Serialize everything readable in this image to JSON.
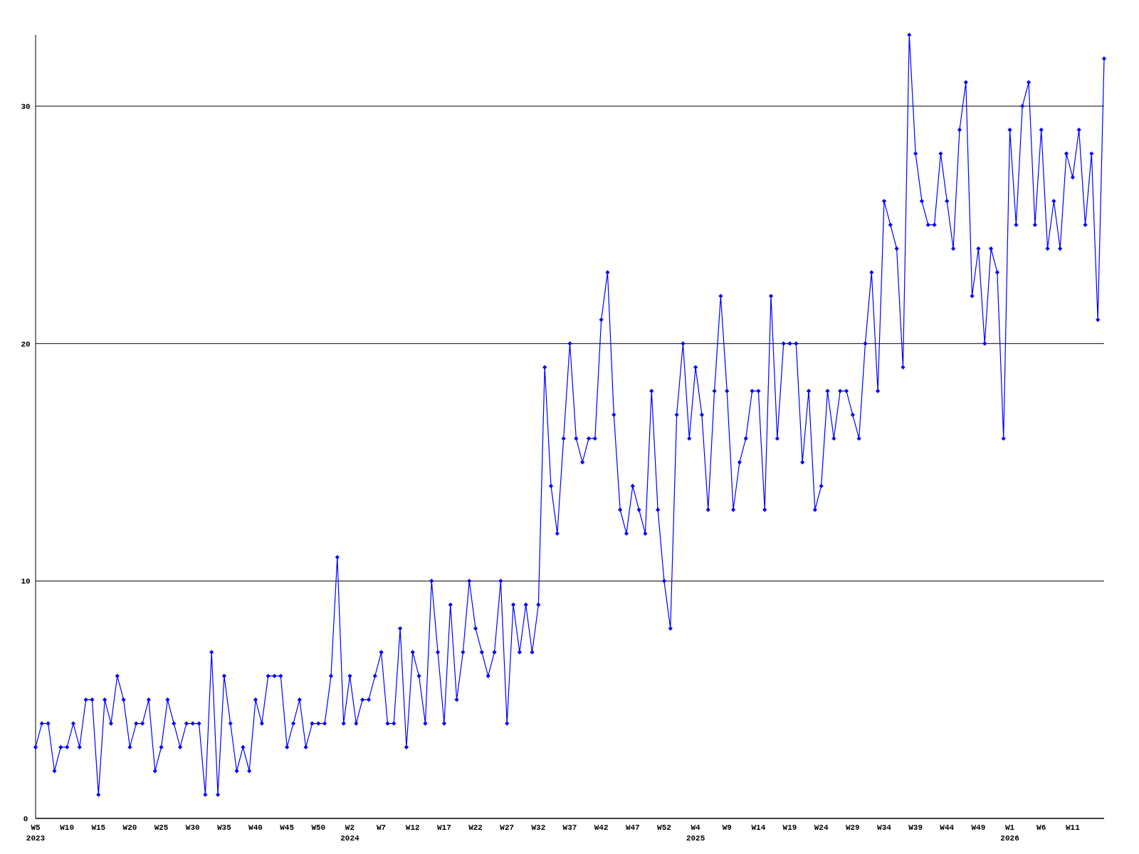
{
  "chart_data": {
    "type": "line",
    "marker": "diamond",
    "grid": "y",
    "color": "#0000ff",
    "ylim": [
      0,
      33
    ],
    "yticks": [
      0,
      10,
      20,
      30
    ],
    "categories": [
      "W5\n2023",
      null,
      null,
      null,
      null,
      "W10",
      null,
      null,
      null,
      null,
      "W15",
      null,
      null,
      null,
      null,
      "W20",
      null,
      null,
      null,
      null,
      "W25",
      null,
      null,
      null,
      null,
      "W30",
      null,
      null,
      null,
      null,
      "W35",
      null,
      null,
      null,
      null,
      "W40",
      null,
      null,
      null,
      null,
      "W45",
      null,
      null,
      null,
      null,
      "W50",
      null,
      null,
      null,
      null,
      "W2\n2024",
      null,
      null,
      null,
      null,
      "W7",
      null,
      null,
      null,
      null,
      "W12",
      null,
      null,
      null,
      null,
      "W17",
      null,
      null,
      null,
      null,
      "W22",
      null,
      null,
      null,
      null,
      "W27",
      null,
      null,
      null,
      null,
      "W32",
      null,
      null,
      null,
      null,
      "W37",
      null,
      null,
      null,
      null,
      "W42",
      null,
      null,
      null,
      null,
      "W47",
      null,
      null,
      null,
      null,
      "W52",
      null,
      null,
      null,
      null,
      "W4\n2025",
      null,
      null,
      null,
      null,
      "W9",
      null,
      null,
      null,
      null,
      "W14",
      null,
      null,
      null,
      null,
      "W19",
      null,
      null,
      null,
      null,
      "W24",
      null,
      null,
      null,
      null,
      "W29",
      null,
      null,
      null,
      null,
      "W34",
      null,
      null,
      null,
      null,
      "W39",
      null,
      null,
      null,
      null,
      "W44",
      null,
      null,
      null,
      null,
      "W49",
      null,
      null,
      null,
      null,
      "W1\n2026",
      null,
      null,
      null,
      null,
      "W6",
      null,
      null,
      null,
      null,
      "W11",
      null,
      null,
      null,
      null,
      null
    ],
    "values": [
      3,
      4,
      4,
      2,
      3,
      3,
      4,
      3,
      5,
      5,
      1,
      5,
      4,
      6,
      5,
      3,
      4,
      4,
      5,
      2,
      3,
      5,
      4,
      3,
      4,
      4,
      4,
      1,
      7,
      1,
      6,
      4,
      2,
      3,
      2,
      5,
      4,
      6,
      6,
      6,
      3,
      4,
      5,
      3,
      4,
      4,
      4,
      6,
      11,
      4,
      6,
      4,
      5,
      5,
      6,
      7,
      4,
      4,
      8,
      3,
      7,
      6,
      4,
      10,
      7,
      4,
      9,
      5,
      7,
      10,
      8,
      7,
      6,
      7,
      10,
      4,
      9,
      7,
      9,
      7,
      9,
      19,
      14,
      12,
      16,
      20,
      16,
      15,
      16,
      16,
      21,
      23,
      17,
      13,
      12,
      14,
      13,
      12,
      18,
      13,
      10,
      8,
      17,
      20,
      16,
      19,
      17,
      13,
      18,
      22,
      18,
      13,
      15,
      16,
      18,
      18,
      13,
      22,
      16,
      20,
      20,
      20,
      15,
      18,
      13,
      14,
      18,
      16,
      18,
      18,
      17,
      16,
      20,
      23,
      18,
      26,
      25,
      24,
      19,
      33,
      28,
      26,
      25,
      25,
      28,
      26,
      24,
      29,
      31,
      22,
      24,
      20,
      24,
      23,
      16,
      29,
      25,
      30,
      31,
      25,
      29,
      24,
      26,
      24,
      28,
      27,
      29,
      25,
      28,
      21,
      32
    ]
  }
}
